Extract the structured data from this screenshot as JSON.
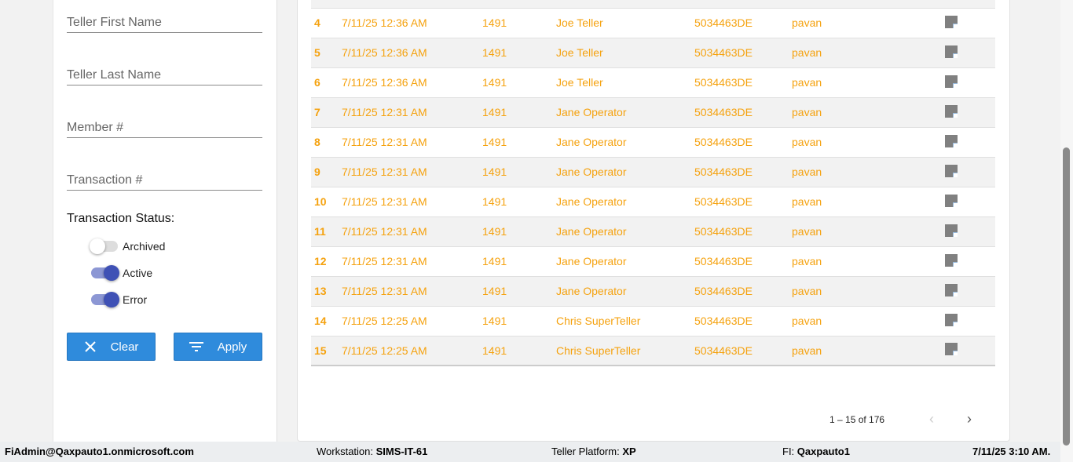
{
  "filters": {
    "teller_first_name": "Teller First Name",
    "teller_last_name": "Teller Last Name",
    "member": "Member #",
    "transaction": "Transaction #",
    "status_label": "Transaction Status:",
    "toggles": [
      {
        "label": "Archived",
        "on": false
      },
      {
        "label": "Active",
        "on": true
      },
      {
        "label": "Error",
        "on": true
      }
    ],
    "clear": "Clear",
    "apply": "Apply"
  },
  "rows": [
    [
      "",
      "",
      "",
      "",
      "",
      "",
      ""
    ],
    [
      "4",
      "7/11/25 12:36 AM",
      "1491",
      "Joe Teller",
      "5034463DE",
      "pavan"
    ],
    [
      "5",
      "7/11/25 12:36 AM",
      "1491",
      "Joe Teller",
      "5034463DE",
      "pavan"
    ],
    [
      "6",
      "7/11/25 12:36 AM",
      "1491",
      "Joe Teller",
      "5034463DE",
      "pavan"
    ],
    [
      "7",
      "7/11/25 12:31 AM",
      "1491",
      "Jane Operator",
      "5034463DE",
      "pavan"
    ],
    [
      "8",
      "7/11/25 12:31 AM",
      "1491",
      "Jane Operator",
      "5034463DE",
      "pavan"
    ],
    [
      "9",
      "7/11/25 12:31 AM",
      "1491",
      "Jane Operator",
      "5034463DE",
      "pavan"
    ],
    [
      "10",
      "7/11/25 12:31 AM",
      "1491",
      "Jane Operator",
      "5034463DE",
      "pavan"
    ],
    [
      "11",
      "7/11/25 12:31 AM",
      "1491",
      "Jane Operator",
      "5034463DE",
      "pavan"
    ],
    [
      "12",
      "7/11/25 12:31 AM",
      "1491",
      "Jane Operator",
      "5034463DE",
      "pavan"
    ],
    [
      "13",
      "7/11/25 12:31 AM",
      "1491",
      "Jane Operator",
      "5034463DE",
      "pavan"
    ],
    [
      "14",
      "7/11/25 12:25 AM",
      "1491",
      "Chris SuperTeller",
      "5034463DE",
      "pavan"
    ],
    [
      "15",
      "7/11/25 12:25 AM",
      "1491",
      "Chris SuperTeller",
      "5034463DE",
      "pavan"
    ]
  ],
  "row_icon": "note-icon",
  "pager": {
    "range": "1 – 15 of 176",
    "prev": "‹",
    "next": "›"
  },
  "footer": {
    "user": "FiAdmin@Qaxpauto1.onmicrosoft.com",
    "workstation_label": "Workstation: ",
    "workstation": "SIMS-IT-61",
    "platform_label": "Teller Platform: ",
    "platform": "XP",
    "fi_label": "FI: ",
    "fi": "Qaxpauto1",
    "datetime": "7/11/25 3:10 AM."
  },
  "colors": {
    "accent": "#2f8bdc",
    "row_text": "#f5a20f",
    "toggle": "#3f51b5"
  }
}
